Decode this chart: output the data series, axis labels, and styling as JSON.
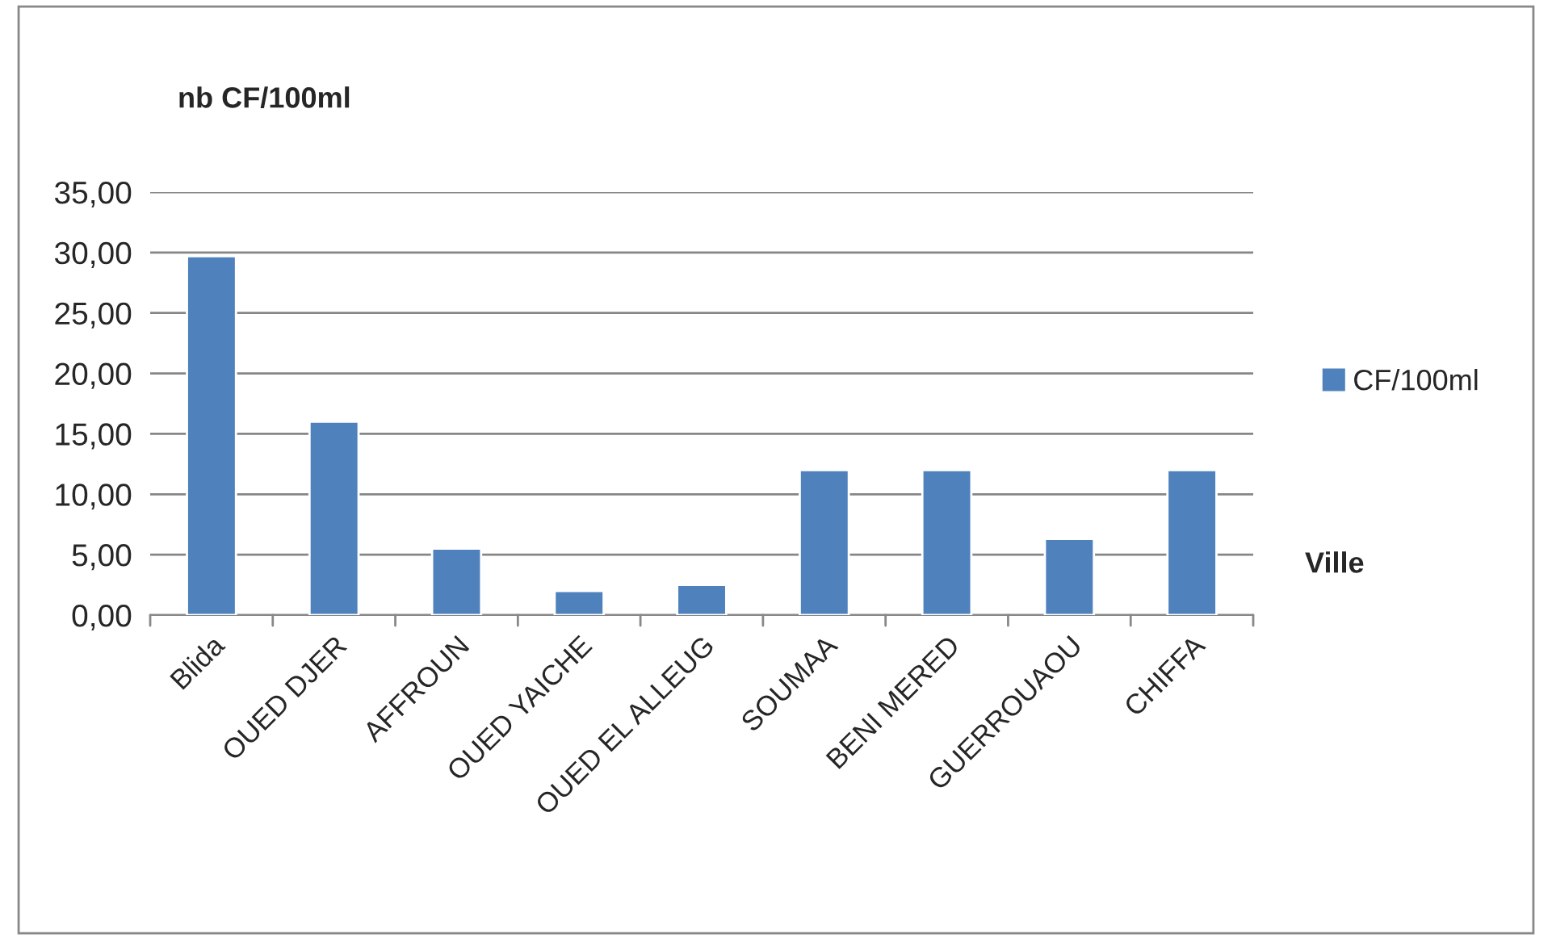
{
  "chart_data": {
    "type": "bar",
    "ylabel": "nb CF/100ml",
    "xlabel": "Ville",
    "categories": [
      "Blida",
      "OUED DJER",
      "AFFROUN",
      "OUED YAICHE",
      "OUED EL ALLEUG",
      "SOUMAA",
      "BENI MERED",
      "GUERROUAOU",
      "CHIFFA"
    ],
    "series": [
      {
        "name": "CF/100ml",
        "color": "#4f81bd",
        "values": [
          29.7,
          16.0,
          5.5,
          2.0,
          2.5,
          12.0,
          12.0,
          6.3,
          12.0
        ]
      }
    ],
    "ylim": [
      0,
      35
    ],
    "yticks": [
      {
        "value": 0,
        "label": "0,00"
      },
      {
        "value": 5,
        "label": "5,00"
      },
      {
        "value": 10,
        "label": "10,00"
      },
      {
        "value": 15,
        "label": "15,00"
      },
      {
        "value": 20,
        "label": "20,00"
      },
      {
        "value": 25,
        "label": "25,00"
      },
      {
        "value": 30,
        "label": "30,00"
      },
      {
        "value": 35,
        "label": "35,00"
      }
    ],
    "grid": "y",
    "legend": "right"
  }
}
